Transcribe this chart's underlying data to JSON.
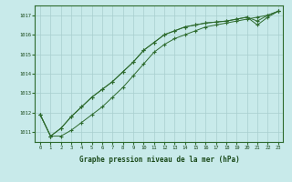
{
  "x": [
    0,
    1,
    2,
    3,
    4,
    5,
    6,
    7,
    8,
    9,
    10,
    11,
    12,
    13,
    14,
    15,
    16,
    17,
    18,
    19,
    20,
    21,
    22,
    23
  ],
  "line1": [
    1011.9,
    1010.8,
    1010.8,
    1011.1,
    1011.5,
    1011.9,
    1012.3,
    1012.8,
    1013.3,
    1013.9,
    1014.5,
    1015.1,
    1015.5,
    1015.8,
    1016.0,
    1016.2,
    1016.4,
    1016.5,
    1016.6,
    1016.7,
    1016.8,
    1016.9,
    1017.0,
    1017.2
  ],
  "line2": [
    1011.9,
    1010.8,
    1011.2,
    1011.8,
    1012.3,
    1012.8,
    1013.2,
    1013.6,
    1014.1,
    1014.6,
    1015.2,
    1015.6,
    1016.0,
    1016.2,
    1016.4,
    1016.5,
    1016.6,
    1016.65,
    1016.7,
    1016.8,
    1016.9,
    1016.5,
    1016.9,
    1017.2
  ],
  "line3": [
    1011.9,
    1010.8,
    1011.2,
    1011.8,
    1012.3,
    1012.8,
    1013.2,
    1013.6,
    1014.1,
    1014.6,
    1015.2,
    1015.6,
    1016.0,
    1016.2,
    1016.4,
    1016.5,
    1016.6,
    1016.65,
    1016.7,
    1016.8,
    1016.9,
    1016.7,
    1017.0,
    1017.2
  ],
  "line_color": "#2d6a2d",
  "background_color": "#c8eaea",
  "grid_color": "#a8cece",
  "text_color": "#1a4a1a",
  "xlabel": "Graphe pression niveau de la mer (hPa)",
  "ylim": [
    1010.5,
    1017.5
  ],
  "yticks": [
    1011,
    1012,
    1013,
    1014,
    1015,
    1016,
    1017
  ],
  "xticks": [
    0,
    1,
    2,
    3,
    4,
    5,
    6,
    7,
    8,
    9,
    10,
    11,
    12,
    13,
    14,
    15,
    16,
    17,
    18,
    19,
    20,
    21,
    22,
    23
  ],
  "figsize": [
    3.2,
    2.0
  ],
  "dpi": 100
}
